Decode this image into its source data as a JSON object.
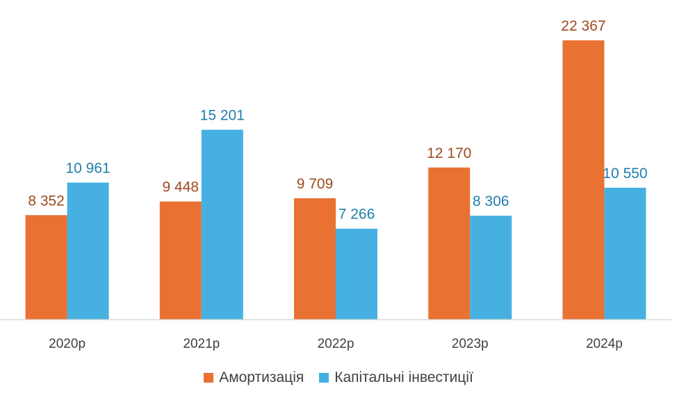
{
  "chart_data": {
    "type": "bar",
    "title": "",
    "xlabel": "",
    "ylabel": "",
    "categories": [
      "2020р",
      "2021р",
      "2022р",
      "2023р",
      "2024р"
    ],
    "series": [
      {
        "name": "Амортизація",
        "color": "#E97132",
        "label_color": "#9C4A1E",
        "values": [
          8352,
          9448,
          9709,
          12170,
          22367
        ],
        "labels": [
          "8 352",
          "9 448",
          "9 709",
          "12 170",
          "22 367"
        ]
      },
      {
        "name": "Капітальні інвестиції",
        "color": "#46B1E1",
        "label_color": "#1F7FAD",
        "values": [
          10961,
          15201,
          7266,
          8306,
          10550
        ],
        "labels": [
          "10 961",
          "15 201",
          "7 266",
          "8 306",
          "10 550"
        ]
      }
    ],
    "ylim": [
      0,
      22367
    ],
    "grid": false,
    "legend_position": "bottom"
  }
}
